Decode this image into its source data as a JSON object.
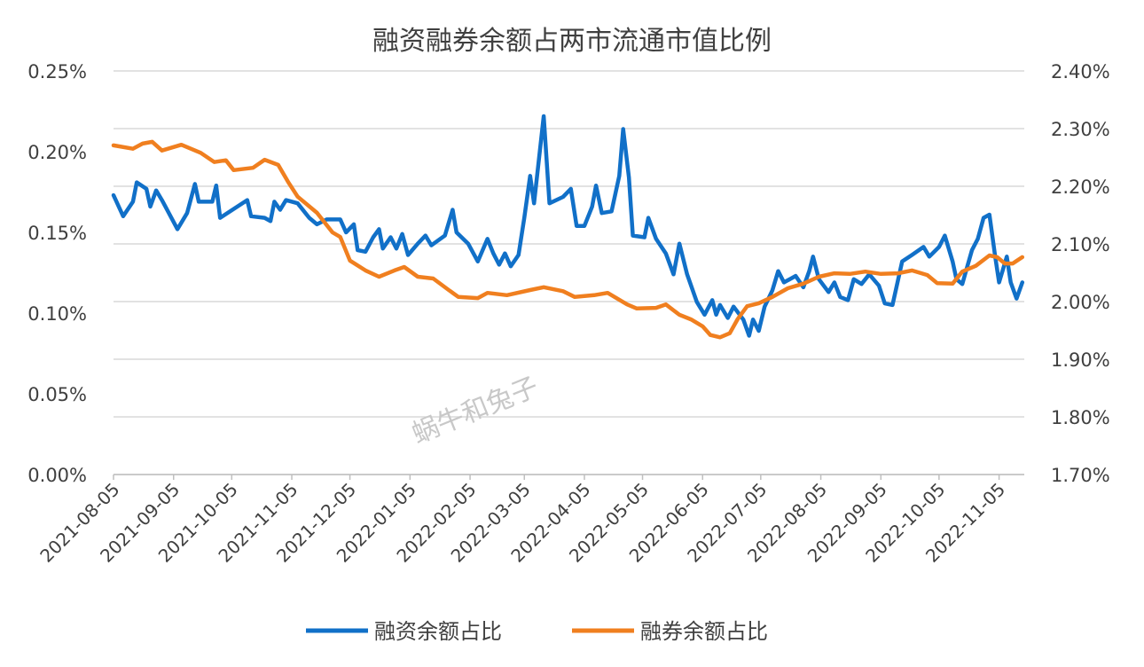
{
  "chart_data": {
    "type": "line",
    "title": "融资融券余额占两市流通市值比例",
    "watermark": "蜗牛和兔子",
    "x_ticks": [
      "2021-08-05",
      "2021-09-05",
      "2021-10-05",
      "2021-11-05",
      "2021-12-05",
      "2022-01-05",
      "2022-02-05",
      "2022-03-05",
      "2022-04-05",
      "2022-05-05",
      "2022-06-05",
      "2022-07-05",
      "2022-08-05",
      "2022-09-05",
      "2022-10-05",
      "2022-11-05"
    ],
    "xlim": [
      "2021-08-05",
      "2022-11-18"
    ],
    "y_left": {
      "ticks": [
        "0.00%",
        "0.05%",
        "0.10%",
        "0.15%",
        "0.20%",
        "0.25%"
      ],
      "ylim": [
        0,
        0.25
      ],
      "unit": "%"
    },
    "y_right": {
      "ticks": [
        "1.70%",
        "1.80%",
        "1.90%",
        "2.00%",
        "2.10%",
        "2.20%",
        "2.30%",
        "2.40%"
      ],
      "ylim": [
        1.7,
        2.4
      ],
      "unit": "%"
    },
    "grid": "horizontal",
    "legend_position": "bottom",
    "series": [
      {
        "name": "融资余额占比",
        "axis": "left",
        "color": "#1170C8",
        "points": [
          [
            "2021-08-05",
            0.173
          ],
          [
            "2021-08-10",
            0.16
          ],
          [
            "2021-08-15",
            0.169
          ],
          [
            "2021-08-17",
            0.181
          ],
          [
            "2021-08-22",
            0.177
          ],
          [
            "2021-08-24",
            0.166
          ],
          [
            "2021-08-27",
            0.176
          ],
          [
            "2021-08-30",
            0.17
          ],
          [
            "2021-09-07",
            0.152
          ],
          [
            "2021-09-12",
            0.162
          ],
          [
            "2021-09-16",
            0.18
          ],
          [
            "2021-09-18",
            0.169
          ],
          [
            "2021-09-25",
            0.169
          ],
          [
            "2021-09-27",
            0.179
          ],
          [
            "2021-09-29",
            0.159
          ],
          [
            "2021-10-13",
            0.17
          ],
          [
            "2021-10-15",
            0.16
          ],
          [
            "2021-10-22",
            0.159
          ],
          [
            "2021-10-25",
            0.157
          ],
          [
            "2021-10-27",
            0.169
          ],
          [
            "2021-10-30",
            0.164
          ],
          [
            "2021-11-02",
            0.17
          ],
          [
            "2021-11-08",
            0.168
          ],
          [
            "2021-11-14",
            0.159
          ],
          [
            "2021-11-18",
            0.155
          ],
          [
            "2021-11-23",
            0.158
          ],
          [
            "2021-11-30",
            0.158
          ],
          [
            "2021-12-03",
            0.15
          ],
          [
            "2021-12-07",
            0.155
          ],
          [
            "2021-12-09",
            0.139
          ],
          [
            "2021-12-13",
            0.138
          ],
          [
            "2021-12-17",
            0.147
          ],
          [
            "2021-12-20",
            0.152
          ],
          [
            "2021-12-22",
            0.14
          ],
          [
            "2021-12-26",
            0.147
          ],
          [
            "2021-12-29",
            0.14
          ],
          [
            "2022-01-01",
            0.149
          ],
          [
            "2022-01-04",
            0.136
          ],
          [
            "2022-01-09",
            0.143
          ],
          [
            "2022-01-13",
            0.148
          ],
          [
            "2022-01-16",
            0.142
          ],
          [
            "2022-01-23",
            0.148
          ],
          [
            "2022-01-27",
            0.164
          ],
          [
            "2022-01-29",
            0.15
          ],
          [
            "2022-02-04",
            0.143
          ],
          [
            "2022-02-09",
            0.132
          ],
          [
            "2022-02-14",
            0.146
          ],
          [
            "2022-02-17",
            0.137
          ],
          [
            "2022-02-20",
            0.13
          ],
          [
            "2022-02-23",
            0.137
          ],
          [
            "2022-02-26",
            0.129
          ],
          [
            "2022-03-02",
            0.136
          ],
          [
            "2022-03-05",
            0.159
          ],
          [
            "2022-03-08",
            0.185
          ],
          [
            "2022-03-10",
            0.168
          ],
          [
            "2022-03-15",
            0.222
          ],
          [
            "2022-03-18",
            0.168
          ],
          [
            "2022-03-25",
            0.172
          ],
          [
            "2022-03-29",
            0.177
          ],
          [
            "2022-04-01",
            0.154
          ],
          [
            "2022-04-05",
            0.154
          ],
          [
            "2022-04-09",
            0.166
          ],
          [
            "2022-04-11",
            0.179
          ],
          [
            "2022-04-14",
            0.162
          ],
          [
            "2022-04-19",
            0.163
          ],
          [
            "2022-04-23",
            0.185
          ],
          [
            "2022-04-25",
            0.214
          ],
          [
            "2022-04-28",
            0.184
          ],
          [
            "2022-04-30",
            0.148
          ],
          [
            "2022-05-06",
            0.147
          ],
          [
            "2022-05-08",
            0.159
          ],
          [
            "2022-05-12",
            0.146
          ],
          [
            "2022-05-17",
            0.137
          ],
          [
            "2022-05-21",
            0.124
          ],
          [
            "2022-05-24",
            0.143
          ],
          [
            "2022-05-28",
            0.124
          ],
          [
            "2022-06-02",
            0.107
          ],
          [
            "2022-06-06",
            0.099
          ],
          [
            "2022-06-10",
            0.108
          ],
          [
            "2022-06-12",
            0.099
          ],
          [
            "2022-06-14",
            0.105
          ],
          [
            "2022-06-18",
            0.097
          ],
          [
            "2022-06-21",
            0.104
          ],
          [
            "2022-06-26",
            0.096
          ],
          [
            "2022-06-29",
            0.086
          ],
          [
            "2022-07-01",
            0.096
          ],
          [
            "2022-07-04",
            0.089
          ],
          [
            "2022-07-07",
            0.104
          ],
          [
            "2022-07-11",
            0.114
          ],
          [
            "2022-07-14",
            0.126
          ],
          [
            "2022-07-17",
            0.119
          ],
          [
            "2022-07-23",
            0.123
          ],
          [
            "2022-07-27",
            0.116
          ],
          [
            "2022-07-30",
            0.126
          ],
          [
            "2022-08-01",
            0.135
          ],
          [
            "2022-08-04",
            0.121
          ],
          [
            "2022-08-09",
            0.113
          ],
          [
            "2022-08-12",
            0.119
          ],
          [
            "2022-08-15",
            0.11
          ],
          [
            "2022-08-19",
            0.108
          ],
          [
            "2022-08-22",
            0.121
          ],
          [
            "2022-08-26",
            0.118
          ],
          [
            "2022-08-30",
            0.124
          ],
          [
            "2022-09-04",
            0.117
          ],
          [
            "2022-09-07",
            0.106
          ],
          [
            "2022-09-11",
            0.105
          ],
          [
            "2022-09-16",
            0.132
          ],
          [
            "2022-09-21",
            0.136
          ],
          [
            "2022-09-27",
            0.141
          ],
          [
            "2022-09-30",
            0.135
          ],
          [
            "2022-10-05",
            0.141
          ],
          [
            "2022-10-08",
            0.148
          ],
          [
            "2022-10-12",
            0.132
          ],
          [
            "2022-10-14",
            0.121
          ],
          [
            "2022-10-17",
            0.118
          ],
          [
            "2022-10-22",
            0.139
          ],
          [
            "2022-10-25",
            0.146
          ],
          [
            "2022-10-28",
            0.159
          ],
          [
            "2022-10-31",
            0.161
          ],
          [
            "2022-11-03",
            0.135
          ],
          [
            "2022-11-05",
            0.119
          ],
          [
            "2022-11-09",
            0.135
          ],
          [
            "2022-11-11",
            0.119
          ],
          [
            "2022-11-14",
            0.109
          ],
          [
            "2022-11-17",
            0.119
          ]
        ]
      },
      {
        "name": "融券余额占比",
        "axis": "right",
        "color": "#F07F1F",
        "points": [
          [
            "2021-08-05",
            2.271
          ],
          [
            "2021-08-15",
            2.265
          ],
          [
            "2021-08-20",
            2.274
          ],
          [
            "2021-08-25",
            2.277
          ],
          [
            "2021-08-30",
            2.262
          ],
          [
            "2021-09-09",
            2.272
          ],
          [
            "2021-09-19",
            2.258
          ],
          [
            "2021-09-26",
            2.242
          ],
          [
            "2021-10-02",
            2.245
          ],
          [
            "2021-10-06",
            2.228
          ],
          [
            "2021-10-16",
            2.232
          ],
          [
            "2021-10-22",
            2.246
          ],
          [
            "2021-10-29",
            2.237
          ],
          [
            "2021-11-03",
            2.208
          ],
          [
            "2021-11-08",
            2.182
          ],
          [
            "2021-11-18",
            2.154
          ],
          [
            "2021-11-26",
            2.12
          ],
          [
            "2021-11-30",
            2.112
          ],
          [
            "2021-12-05",
            2.071
          ],
          [
            "2021-12-13",
            2.054
          ],
          [
            "2021-12-20",
            2.043
          ],
          [
            "2021-12-28",
            2.054
          ],
          [
            "2022-01-02",
            2.06
          ],
          [
            "2022-01-09",
            2.043
          ],
          [
            "2022-01-17",
            2.04
          ],
          [
            "2022-01-25",
            2.02
          ],
          [
            "2022-01-30",
            2.008
          ],
          [
            "2022-02-09",
            2.006
          ],
          [
            "2022-02-14",
            2.015
          ],
          [
            "2022-02-24",
            2.011
          ],
          [
            "2022-03-08",
            2.02
          ],
          [
            "2022-03-15",
            2.025
          ],
          [
            "2022-03-25",
            2.018
          ],
          [
            "2022-03-31",
            2.008
          ],
          [
            "2022-04-10",
            2.011
          ],
          [
            "2022-04-17",
            2.015
          ],
          [
            "2022-04-27",
            1.995
          ],
          [
            "2022-05-02",
            1.988
          ],
          [
            "2022-05-12",
            1.989
          ],
          [
            "2022-05-17",
            1.995
          ],
          [
            "2022-05-24",
            1.977
          ],
          [
            "2022-05-30",
            1.969
          ],
          [
            "2022-06-05",
            1.957
          ],
          [
            "2022-06-09",
            1.942
          ],
          [
            "2022-06-14",
            1.938
          ],
          [
            "2022-06-19",
            1.945
          ],
          [
            "2022-06-23",
            1.969
          ],
          [
            "2022-06-28",
            1.992
          ],
          [
            "2022-07-04",
            1.997
          ],
          [
            "2022-07-11",
            2.008
          ],
          [
            "2022-07-19",
            2.023
          ],
          [
            "2022-07-27",
            2.031
          ],
          [
            "2022-08-04",
            2.043
          ],
          [
            "2022-08-12",
            2.049
          ],
          [
            "2022-08-20",
            2.048
          ],
          [
            "2022-08-28",
            2.052
          ],
          [
            "2022-09-05",
            2.048
          ],
          [
            "2022-09-14",
            2.049
          ],
          [
            "2022-09-21",
            2.054
          ],
          [
            "2022-09-29",
            2.046
          ],
          [
            "2022-10-04",
            2.032
          ],
          [
            "2022-10-12",
            2.031
          ],
          [
            "2022-10-17",
            2.052
          ],
          [
            "2022-10-24",
            2.062
          ],
          [
            "2022-10-31",
            2.08
          ],
          [
            "2022-11-04",
            2.077
          ],
          [
            "2022-11-08",
            2.066
          ],
          [
            "2022-11-12",
            2.066
          ],
          [
            "2022-11-17",
            2.077
          ]
        ]
      }
    ]
  }
}
